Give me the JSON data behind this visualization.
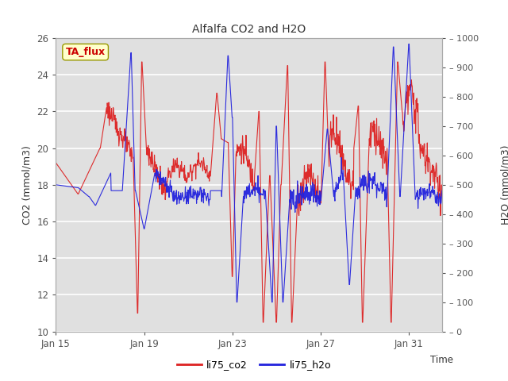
{
  "title": "Alfalfa CO2 and H2O",
  "xlabel": "Time",
  "ylabel_left": "CO2 (mmol/m3)",
  "ylabel_right": "H2O (mmol/m3)",
  "ylim_left": [
    10,
    26
  ],
  "ylim_right": [
    0,
    1000
  ],
  "yticks_left": [
    10,
    12,
    14,
    16,
    18,
    20,
    22,
    24,
    26
  ],
  "yticks_right": [
    0,
    100,
    200,
    300,
    400,
    500,
    600,
    700,
    800,
    900,
    1000
  ],
  "xtick_labels": [
    "Jan 15",
    "Jan 19",
    "Jan 23",
    "Jan 27",
    "Jan 31"
  ],
  "xtick_positions": [
    0,
    4,
    8,
    12,
    16
  ],
  "xlim": [
    0,
    17.5
  ],
  "annotation_text": "TA_flux",
  "annotation_bg": "#ffffcc",
  "annotation_border": "#cccc00",
  "annotation_text_color": "#cc0000",
  "line_co2_color": "#dd2222",
  "line_h2o_color": "#2222dd",
  "legend_labels": [
    "li75_co2",
    "li75_h2o"
  ],
  "bg_color": "#e0e0e0",
  "grid_color": "#ffffff",
  "fig_width": 6.4,
  "fig_height": 4.8,
  "dpi": 100
}
